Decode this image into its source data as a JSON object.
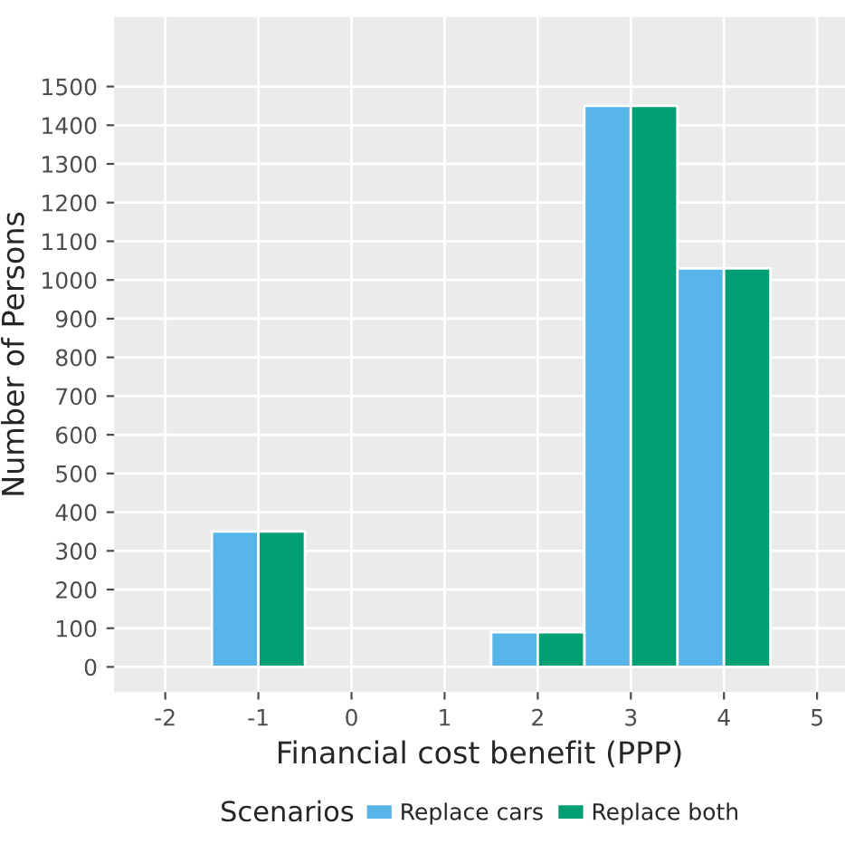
{
  "chart_data": {
    "type": "bar",
    "xlabel": "Financial cost benefit (PPP)",
    "ylabel": "Number of Persons",
    "legend_title": "Scenarios",
    "x": [
      -1,
      2,
      3,
      4
    ],
    "series": [
      {
        "name": "Replace cars",
        "color": "#56b4e9",
        "values": [
          350,
          90,
          1450,
          1030
        ]
      },
      {
        "name": "Replace both",
        "color": "#009e73",
        "values": [
          350,
          90,
          1450,
          1030
        ]
      }
    ],
    "xlim": [
      -2.55,
      5.3
    ],
    "xticks": [
      -2,
      -1,
      0,
      1,
      2,
      3,
      4,
      5
    ],
    "ylim": [
      -65,
      1680
    ],
    "yticks": [
      0,
      100,
      200,
      300,
      400,
      500,
      600,
      700,
      800,
      900,
      1000,
      1100,
      1200,
      1300,
      1400,
      1500
    ],
    "grid": true,
    "legend": "bottom"
  }
}
